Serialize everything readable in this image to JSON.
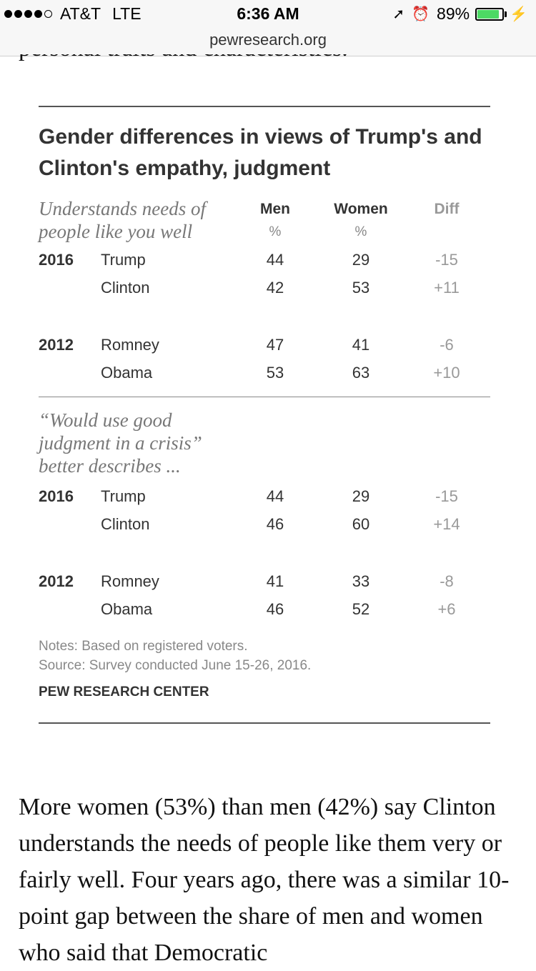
{
  "status_bar": {
    "carrier": "AT&T",
    "network": "LTE",
    "time": "6:36 AM",
    "battery": "89%",
    "battery_level": 0.89,
    "icons": [
      "signal-dots-icon",
      "location-arrow-icon",
      "alarm-clock-icon",
      "battery-icon",
      "charging-bolt-icon"
    ]
  },
  "url_bar": {
    "domain": "pewresearch.org"
  },
  "article": {
    "cut_off_line": "personal traits and characteristics.",
    "paragraph": "More women (53%) than men (42%) say Clinton understands the needs of people like them very or fairly well. Four years ago, there was a similar 10-point gap between the share of men and women who said that Democratic"
  },
  "chart": {
    "title": "Gender differences in views of Trump's and Clinton's empathy, judgment",
    "columns": {
      "men": "Men",
      "women": "Women",
      "diff": "Diff",
      "men_unit": "%",
      "women_unit": "%"
    },
    "section1_label": "Understands needs of people like you well",
    "section2_label": "“Would use good judgment in a crisis” better describes ...",
    "section1_rows": [
      {
        "year": "2016",
        "name": "Trump",
        "men": "44",
        "women": "29",
        "diff": "-15"
      },
      {
        "year": "",
        "name": "Clinton",
        "men": "42",
        "women": "53",
        "diff": "+11"
      },
      {
        "year": "2012",
        "name": "Romney",
        "men": "47",
        "women": "41",
        "diff": "-6"
      },
      {
        "year": "",
        "name": "Obama",
        "men": "53",
        "women": "63",
        "diff": "+10"
      }
    ],
    "section2_rows": [
      {
        "year": "2016",
        "name": "Trump",
        "men": "44",
        "women": "29",
        "diff": "-15"
      },
      {
        "year": "",
        "name": "Clinton",
        "men": "46",
        "women": "60",
        "diff": "+14"
      },
      {
        "year": "2012",
        "name": "Romney",
        "men": "41",
        "women": "33",
        "diff": "-8"
      },
      {
        "year": "",
        "name": "Obama",
        "men": "46",
        "women": "52",
        "diff": "+6"
      }
    ],
    "notes": "Notes: Based on registered voters.",
    "source": "Source: Survey conducted June 15-26, 2016.",
    "brand": "PEW RESEARCH CENTER"
  }
}
